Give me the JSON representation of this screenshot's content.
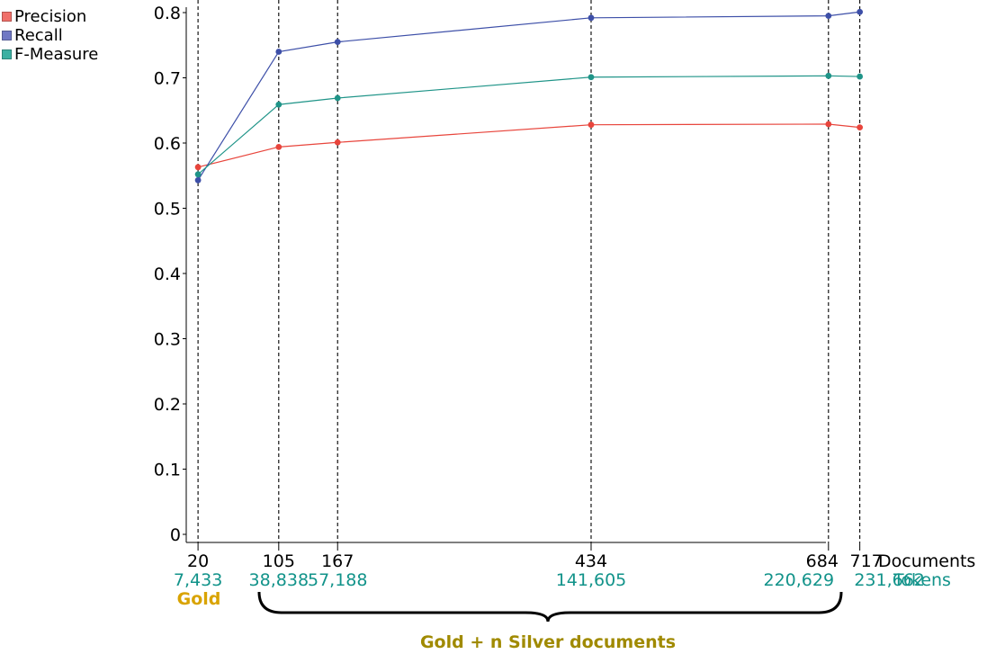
{
  "chart_data": {
    "type": "line",
    "x": [
      20,
      105,
      167,
      434,
      684,
      717
    ],
    "x_axis_label": "Documents",
    "secondary_axis_label": "Tokens",
    "tokens": [
      "7,433",
      "38,838",
      "57,188",
      "141,605",
      "220,629",
      "231,662"
    ],
    "ylim": [
      0,
      0.8
    ],
    "yticks": [
      "0",
      "0.1",
      "0.2",
      "0.3",
      "0.4",
      "0.5",
      "0.6",
      "0.7",
      "0.8"
    ],
    "series": [
      {
        "name": "Precision",
        "color": "#e8453c",
        "values": [
          0.563,
          0.594,
          0.601,
          0.628,
          0.629,
          0.624
        ]
      },
      {
        "name": "Recall",
        "color": "#3d4fa8",
        "values": [
          0.543,
          0.74,
          0.755,
          0.792,
          0.795,
          0.801
        ]
      },
      {
        "name": "F-Measure",
        "color": "#1f9488",
        "values": [
          0.552,
          0.659,
          0.669,
          0.701,
          0.703,
          0.702
        ]
      }
    ],
    "legend_swatches": [
      "#f0706a",
      "#7078c4",
      "#3cb0a2"
    ],
    "gold_label": "Gold",
    "gold_color": "#d9a300",
    "bracket_label": "Gold + n Silver documents",
    "bracket_color": "#a08a00",
    "token_color": "#12938a",
    "legend_position": "top-left",
    "grid": false
  }
}
